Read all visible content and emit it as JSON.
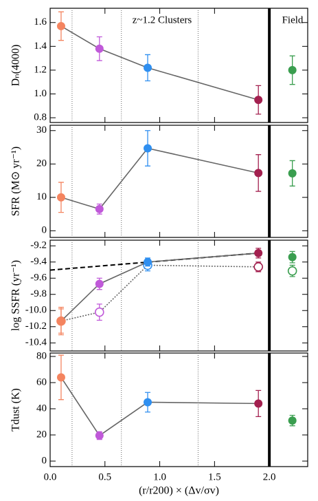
{
  "chart_data": [
    {
      "type": "scatter",
      "ylabel": "Dₙ(4000)",
      "cluster_label": "z~1.2 Clusters",
      "field_label": "Field",
      "xlim": [
        0,
        2.35
      ],
      "xticks": [
        {
          "value": 0,
          "label": "0.0"
        },
        0.5,
        {
          "value": 1,
          "label": "1.0"
        },
        1.5,
        {
          "value": 2,
          "label": "2.0"
        }
      ],
      "ylim": [
        0.76,
        1.72
      ],
      "yticks": [
        0.8,
        {
          "value": 1,
          "label": "1.0"
        },
        1.2,
        1.4,
        1.6
      ],
      "dotted_vlines": [
        0.2,
        0.65,
        1.35
      ],
      "solid_vlines": [
        2.0
      ],
      "series": [
        {
          "x": [
            0.1,
            0.45,
            0.89,
            1.9
          ],
          "values": [
            1.57,
            1.38,
            1.22,
            0.95
          ],
          "errors": [
            0.12,
            0.1,
            0.11,
            0.12
          ],
          "colors": [
            "#f4845f",
            "#c059d9",
            "#2f8ff0",
            "#a3204f"
          ],
          "line": "solid"
        },
        {
          "x": [
            2.21
          ],
          "values": [
            1.2
          ],
          "errors": [
            0.12
          ],
          "colors": [
            "#3a9e4f"
          ]
        }
      ]
    },
    {
      "type": "scatter",
      "ylabel": "SFR (M⊙ yr⁻¹)",
      "xlim": [
        0,
        2.35
      ],
      "xticks": [
        {
          "value": 0,
          "label": "0.0"
        },
        0.5,
        {
          "value": 1,
          "label": "1.0"
        },
        1.5,
        {
          "value": 2,
          "label": "2.0"
        }
      ],
      "ylim": [
        -2,
        31.6
      ],
      "yticks": [
        0,
        10,
        20,
        30
      ],
      "dotted_vlines": [
        0.2,
        0.65,
        1.35
      ],
      "solid_vlines": [
        2.0
      ],
      "series": [
        {
          "x": [
            0.1,
            0.45,
            0.89,
            1.9
          ],
          "values": [
            10,
            6.5,
            24.7,
            17.3
          ],
          "errors": [
            4.5,
            1.5,
            5.3,
            5.5
          ],
          "colors": [
            "#f4845f",
            "#c059d9",
            "#2f8ff0",
            "#a3204f"
          ],
          "line": "solid"
        },
        {
          "x": [
            2.21
          ],
          "values": [
            17.2
          ],
          "errors": [
            3.8
          ],
          "colors": [
            "#3a9e4f"
          ]
        }
      ]
    },
    {
      "type": "scatter",
      "ylabel": "log SSFR (yr⁻¹)",
      "xlim": [
        0,
        2.35
      ],
      "xticks": [
        {
          "value": 0,
          "label": "0.0"
        },
        0.5,
        {
          "value": 1,
          "label": "1.0"
        },
        1.5,
        {
          "value": 2,
          "label": "2.0"
        }
      ],
      "ylim": [
        -10.5,
        -9.13
      ],
      "yticks": [
        -9.2,
        -9.4,
        -9.6,
        -9.8,
        {
          "value": -10,
          "label": "-10.0"
        },
        -10.2,
        -10.4
      ],
      "dotted_vlines": [
        0.2,
        0.65,
        1.35
      ],
      "solid_vlines": [
        2.0
      ],
      "series": [
        {
          "x": [
            0,
            1.9
          ],
          "values": [
            -9.5,
            -9.29
          ],
          "line": "dashed",
          "marker": false
        },
        {
          "x": [
            0.1,
            0.45,
            0.89,
            1.9
          ],
          "values": [
            -10.13,
            -10.02,
            -9.44,
            -9.46
          ],
          "errors": [
            0.15,
            0.1,
            0.07,
            0.06
          ],
          "colors": [
            "#f4845f",
            "#c059d9",
            "#2f8ff0",
            "#a3204f"
          ],
          "line": "dotted",
          "open": true
        },
        {
          "x": [
            0.1,
            0.45,
            0.89,
            1.9
          ],
          "values": [
            -10.13,
            -9.67,
            -9.4,
            -9.29
          ],
          "errors": [
            0.17,
            0.07,
            0.05,
            0.06
          ],
          "colors": [
            "#f4845f",
            "#c059d9",
            "#2f8ff0",
            "#a3204f"
          ],
          "line": "solid"
        },
        {
          "x": [
            2.21
          ],
          "values": [
            -9.34
          ],
          "errors": [
            0.07
          ],
          "colors": [
            "#3a9e4f"
          ]
        },
        {
          "x": [
            2.21
          ],
          "values": [
            -9.51
          ],
          "errors": [
            0.07
          ],
          "colors": [
            "#3a9e4f"
          ],
          "open": true
        }
      ]
    },
    {
      "type": "scatter",
      "ylabel": "Tdust (K)",
      "xlabel": "(r/r200) × (Δv/σv)",
      "xlim": [
        0,
        2.35
      ],
      "xticks": [
        {
          "value": 0,
          "label": "0.0"
        },
        0.5,
        {
          "value": 1,
          "label": "1.0"
        },
        1.5,
        {
          "value": 2,
          "label": "2.0"
        }
      ],
      "ylim": [
        -4.2,
        82.6
      ],
      "yticks": [
        0,
        20,
        40,
        60,
        80
      ],
      "dotted_vlines": [
        0.2,
        0.65,
        1.35
      ],
      "solid_vlines": [
        2.0
      ],
      "series": [
        {
          "x": [
            0.1,
            0.45,
            0.89,
            1.9
          ],
          "values": [
            64,
            19.5,
            45,
            44
          ],
          "errors": [
            17,
            3,
            7.5,
            10
          ],
          "colors": [
            "#f4845f",
            "#c059d9",
            "#2f8ff0",
            "#a3204f"
          ],
          "line": "solid"
        },
        {
          "x": [
            2.21
          ],
          "values": [
            31
          ],
          "errors": [
            4
          ],
          "colors": [
            "#3a9e4f"
          ]
        }
      ]
    }
  ]
}
